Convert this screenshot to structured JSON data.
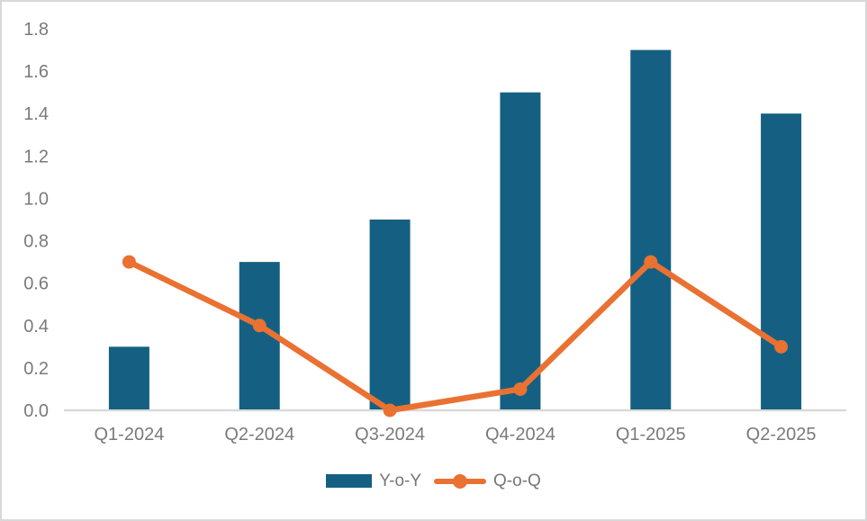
{
  "frame": {
    "border_color": "#d8d8d8",
    "background_color": "#ffffff"
  },
  "chart_data": {
    "type": "combo",
    "categories": [
      "Q1-2024",
      "Q2-2024",
      "Q3-2024",
      "Q4-2024",
      "Q1-2025",
      "Q2-2025"
    ],
    "series": [
      {
        "name": "Y-o-Y",
        "type": "bar",
        "values": [
          0.3,
          0.7,
          0.9,
          1.5,
          1.7,
          1.4
        ],
        "color": "#156082"
      },
      {
        "name": "Q-o-Q",
        "type": "line",
        "values": [
          0.7,
          0.4,
          0.0,
          0.1,
          0.7,
          0.3
        ],
        "color": "#e97132"
      }
    ],
    "title": "",
    "xlabel": "",
    "ylabel": "",
    "ylim": [
      0,
      1.8
    ],
    "ytick_step": 0.2,
    "ytick_decimals": 1,
    "grid": false,
    "legend_position": "bottom",
    "axis_line_color": "#d9d9d9",
    "tick_label_color": "#7a7a7a"
  }
}
